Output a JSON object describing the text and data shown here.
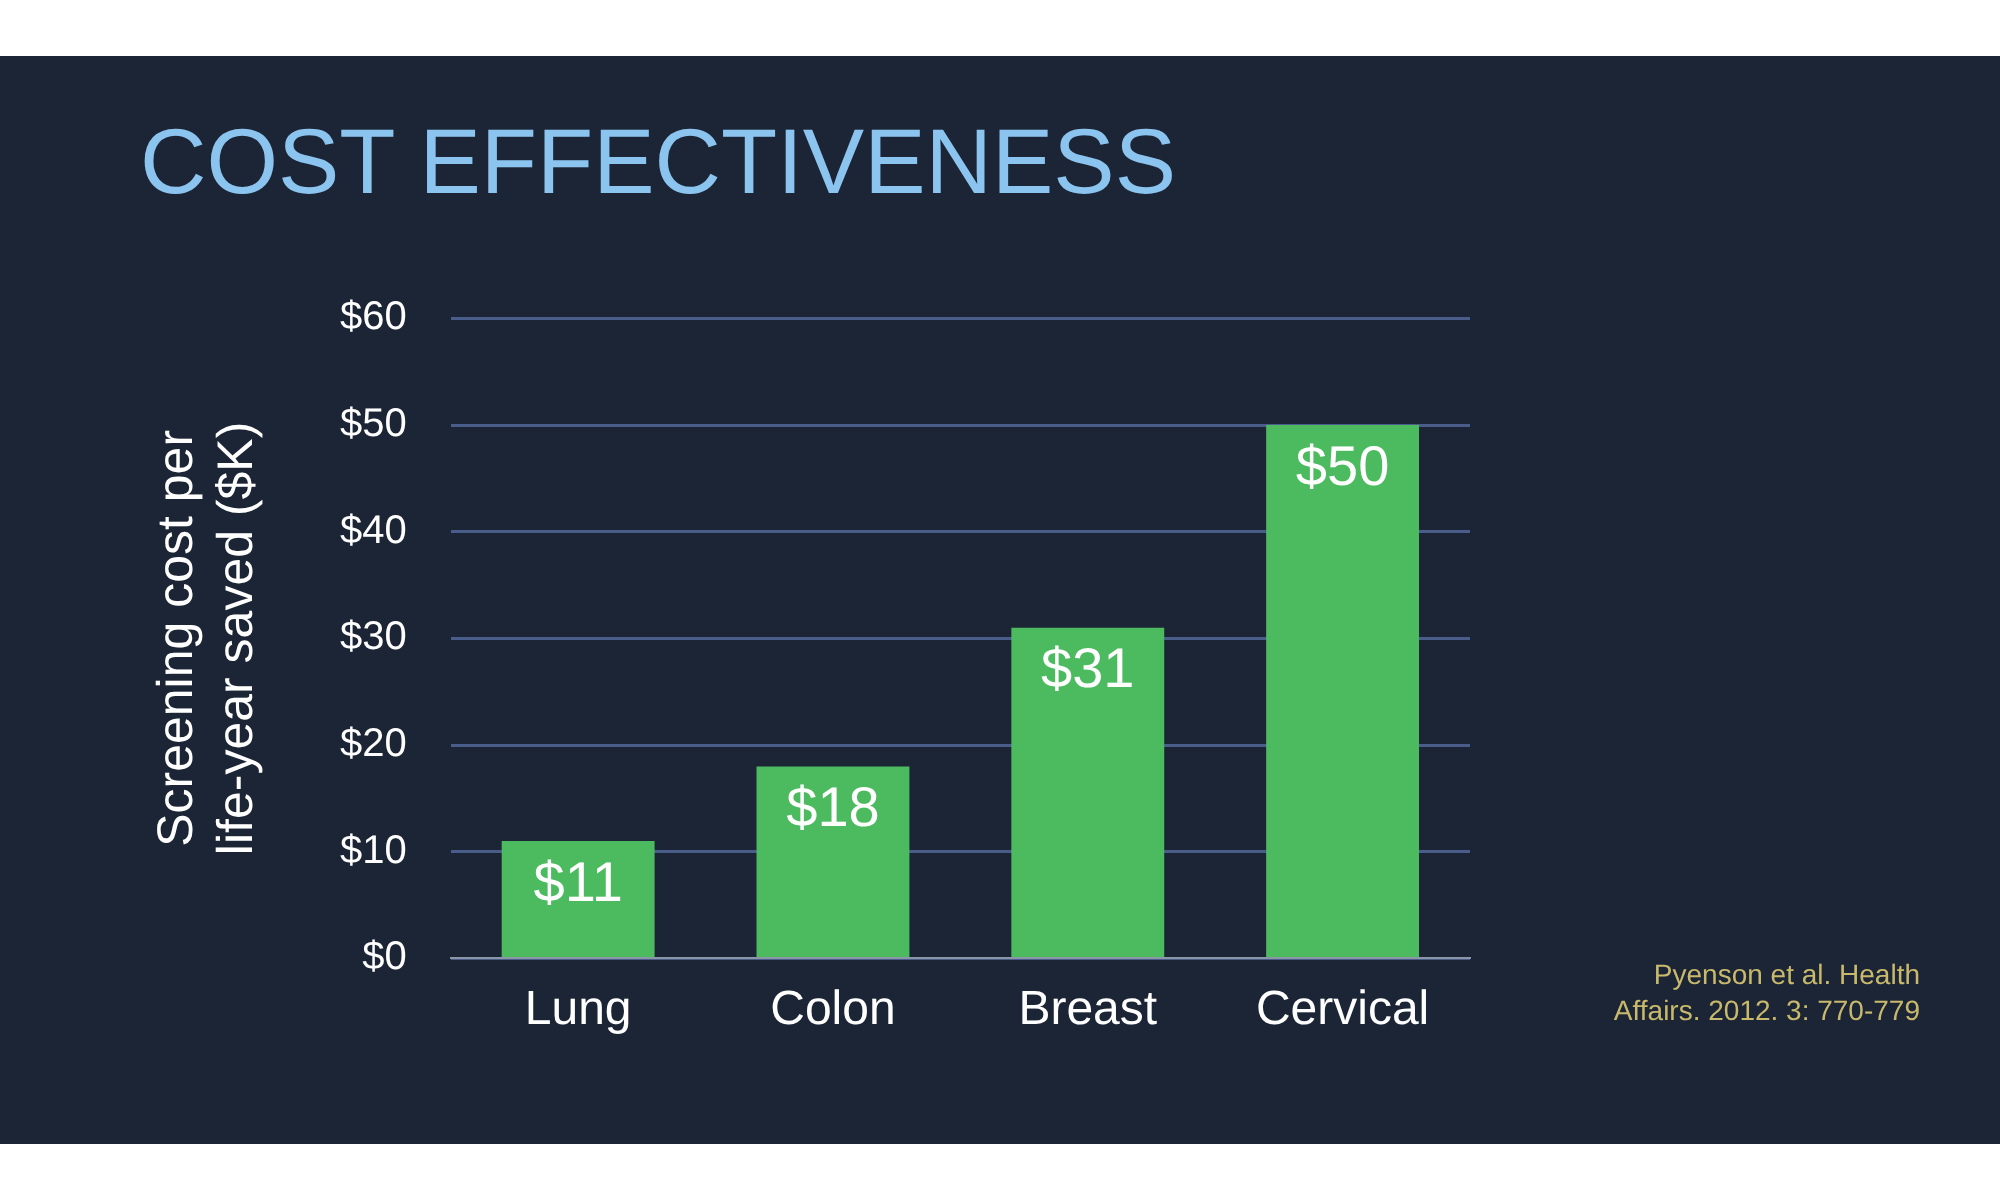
{
  "chart_data": {
    "type": "bar",
    "title": "COST EFFECTIVENESS",
    "ylabel": "Screening cost per life-year saved ($K)",
    "categories": [
      "Lung",
      "Colon",
      "Breast",
      "Cervical"
    ],
    "values": [
      11,
      18,
      31,
      50
    ],
    "value_labels": [
      "$11",
      "$18",
      "$31",
      "$50"
    ],
    "color": "#4cbb5f",
    "ylim": [
      0,
      60
    ],
    "yticks": [
      {
        "value": 0,
        "label": "$0"
      },
      {
        "value": 10,
        "label": "$10"
      },
      {
        "value": 20,
        "label": "$20"
      },
      {
        "value": 30,
        "label": "$30"
      },
      {
        "value": 40,
        "label": "$40"
      },
      {
        "value": 50,
        "label": "$50"
      },
      {
        "value": 60,
        "label": "$60"
      }
    ],
    "grid": "y",
    "legend": false,
    "annotations": [
      "Pyenson et al. Health Affairs. 2012. 3: 770-779"
    ]
  }
}
